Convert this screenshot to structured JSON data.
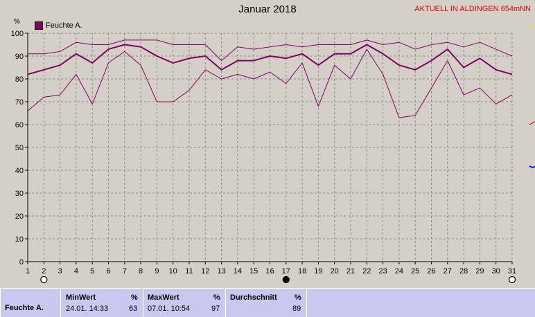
{
  "header": {
    "title": "Januar 2018",
    "headline": "AKTUELL IN ALDINGEN 654mNN",
    "unit_label": "%"
  },
  "legend": {
    "series_label": "Feuchte A.",
    "color": "#800060"
  },
  "chart_data": {
    "type": "line",
    "title": "Januar 2018",
    "xlabel": "",
    "ylabel": "%",
    "xlim": [
      1,
      31
    ],
    "ylim": [
      0,
      100
    ],
    "y_ticks": [
      0,
      10,
      20,
      30,
      40,
      50,
      60,
      70,
      80,
      90,
      100
    ],
    "x": [
      1,
      2,
      3,
      4,
      5,
      6,
      7,
      8,
      9,
      10,
      11,
      12,
      13,
      14,
      15,
      16,
      17,
      18,
      19,
      20,
      21,
      22,
      23,
      24,
      25,
      26,
      27,
      28,
      29,
      30,
      31
    ],
    "grid": true,
    "series": [
      {
        "name": "Feuchte A.",
        "role": "max",
        "color": "#800060",
        "values": [
          91,
          91,
          92,
          96,
          95,
          95,
          97,
          97,
          97,
          95,
          95,
          95,
          88,
          94,
          93,
          94,
          95,
          94,
          95,
          95,
          95,
          97,
          95,
          96,
          93,
          95,
          96,
          94,
          96,
          93,
          90
        ]
      },
      {
        "name": "Feuchte A.",
        "role": "mean",
        "color": "#800060",
        "values": [
          82,
          84,
          86,
          91,
          87,
          93,
          95,
          94,
          90,
          87,
          89,
          90,
          84,
          88,
          88,
          90,
          89,
          91,
          86,
          91,
          91,
          95,
          91,
          86,
          84,
          88,
          93,
          85,
          89,
          84,
          82
        ]
      },
      {
        "name": "Feuchte A.",
        "role": "min",
        "color": "#800060",
        "values": [
          66,
          72,
          73,
          82,
          69,
          87,
          92,
          86,
          70,
          70,
          75,
          84,
          80,
          82,
          80,
          83,
          78,
          87,
          68,
          86,
          80,
          93,
          82,
          63,
          64,
          76,
          88,
          73,
          76,
          69,
          73
        ]
      }
    ],
    "markers": [
      {
        "day": 2,
        "symbol": "moon-open"
      },
      {
        "day": 17,
        "symbol": "moon-filled"
      },
      {
        "day": 31,
        "symbol": "moon-open"
      }
    ]
  },
  "stats": {
    "name": "Feuchte A.",
    "unit": "%",
    "min": {
      "label": "MinWert",
      "datetime": "24.01.  14:33",
      "value": "63"
    },
    "max": {
      "label": "MaxWert",
      "datetime": "07.01.  10:54",
      "value": "97"
    },
    "avg": {
      "label": "Durchschnitt",
      "value": "89"
    }
  }
}
